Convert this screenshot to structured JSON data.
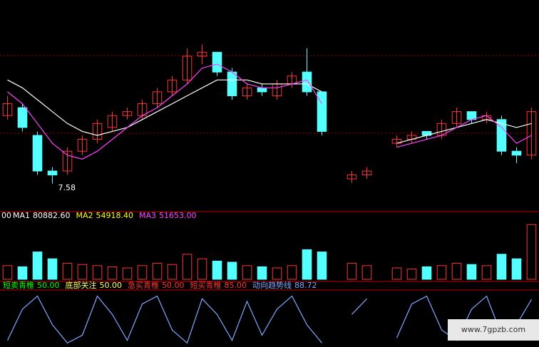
{
  "chart_data": [
    {
      "type": "candlestick",
      "categories": [
        null,
        null,
        null,
        null,
        null,
        null,
        null,
        null,
        null,
        null,
        null,
        null,
        null,
        null,
        null,
        null,
        null,
        null,
        null,
        null,
        null,
        null,
        null,
        null,
        null,
        null,
        null,
        null,
        null,
        null,
        null,
        null,
        null,
        null,
        null,
        null
      ],
      "open": [
        9.3,
        9.5,
        8.8,
        7.9,
        7.9,
        8.4,
        8.7,
        9.0,
        9.3,
        9.3,
        9.6,
        9.9,
        10.2,
        10.8,
        10.9,
        10.4,
        9.8,
        10.0,
        9.8,
        10.1,
        10.4,
        9.9,
        null,
        7.7,
        7.8,
        null,
        8.6,
        8.7,
        8.9,
        8.8,
        9.1,
        9.4,
        9.2,
        9.2,
        8.4,
        8.3
      ],
      "high": [
        9.8,
        9.6,
        8.9,
        8.0,
        8.5,
        8.8,
        9.2,
        9.4,
        9.5,
        9.7,
        10.0,
        10.3,
        11.0,
        11.1,
        10.9,
        10.5,
        10.1,
        10.1,
        10.2,
        10.4,
        11.0,
        9.9,
        null,
        7.9,
        8.0,
        null,
        8.8,
        8.9,
        8.9,
        9.2,
        9.5,
        9.4,
        9.4,
        9.3,
        8.5,
        9.5
      ],
      "low": [
        9.2,
        8.9,
        7.8,
        7.58,
        7.8,
        8.3,
        8.6,
        8.9,
        9.2,
        9.2,
        9.5,
        9.8,
        10.1,
        10.6,
        10.3,
        9.7,
        9.7,
        9.8,
        9.7,
        10.0,
        9.8,
        8.8,
        null,
        7.6,
        7.7,
        null,
        8.5,
        8.6,
        8.7,
        8.7,
        9.0,
        9.1,
        9.1,
        8.3,
        8.1,
        8.2
      ],
      "close": [
        9.6,
        9.0,
        7.9,
        7.8,
        8.4,
        8.7,
        9.1,
        9.3,
        9.4,
        9.6,
        9.9,
        10.2,
        10.8,
        10.9,
        10.4,
        9.8,
        10.0,
        9.9,
        10.1,
        10.3,
        9.9,
        8.9,
        null,
        7.8,
        7.9,
        null,
        8.7,
        8.8,
        8.8,
        9.1,
        9.4,
        9.2,
        9.3,
        8.4,
        8.3,
        9.4
      ],
      "series": [
        {
          "color": "#ffffff",
          "values": [
            10.2,
            10.0,
            9.7,
            9.4,
            9.1,
            8.9,
            8.8,
            8.9,
            9.0,
            9.2,
            9.4,
            9.6,
            9.8,
            10.0,
            10.2,
            10.2,
            10.2,
            10.1,
            10.1,
            10.1,
            10.1,
            9.9,
            null,
            null,
            null,
            null,
            8.6,
            8.7,
            8.8,
            8.9,
            9.0,
            9.1,
            9.2,
            9.1,
            9.0,
            9.1
          ]
        },
        {
          "color": "#ff44ff",
          "values": [
            9.9,
            9.6,
            9.1,
            8.6,
            8.3,
            8.2,
            8.4,
            8.7,
            9.0,
            9.3,
            9.5,
            9.8,
            10.1,
            10.5,
            10.6,
            10.4,
            10.1,
            10.0,
            10.0,
            10.1,
            10.2,
            9.6,
            null,
            null,
            null,
            null,
            8.5,
            8.6,
            8.7,
            8.8,
            9.0,
            9.2,
            9.3,
            9.0,
            8.6,
            8.8
          ]
        }
      ],
      "ylim": [
        7,
        11.5
      ],
      "annotation": "7.58"
    },
    {
      "type": "bar",
      "prefix": "00",
      "legend": [
        {
          "name": "MA1",
          "value": 80882.6,
          "value_label": "80882.60",
          "color": "#ffffff"
        },
        {
          "name": "MA2",
          "value": 54918.4,
          "value_label": "54918.40",
          "color": "#ffff00"
        },
        {
          "name": "MA3",
          "value": 51653,
          "value_label": "51653.00",
          "color": "#ff44ff"
        }
      ],
      "values": [
        60000,
        55000,
        120000,
        90000,
        70000,
        65000,
        60000,
        55000,
        50000,
        60000,
        70000,
        65000,
        110000,
        90000,
        80000,
        75000,
        60000,
        55000,
        50000,
        60000,
        130000,
        120000,
        null,
        70000,
        60000,
        null,
        50000,
        45000,
        55000,
        60000,
        70000,
        65000,
        60000,
        110000,
        90000,
        240000
      ],
      "ylim": [
        0,
        250000
      ]
    },
    {
      "type": "line",
      "legend": [
        {
          "name": "短卖青椎",
          "value": 50,
          "value_label": "50.00",
          "color": "#00ff00"
        },
        {
          "name": "底部关注",
          "value": 50,
          "value_label": "50.00",
          "color": "#ffff66"
        },
        {
          "name": "急买青椎",
          "value": 50,
          "value_label": "50.00",
          "color": "#ff3232"
        },
        {
          "name": "短买青椎",
          "value": 85,
          "value_label": "85.00",
          "color": "#ff3232"
        },
        {
          "name": "动向趋势线",
          "value": 88.72,
          "value_label": "88.72",
          "color": "#7fa8ff"
        }
      ],
      "series": [
        {
          "color": "#7fa8ff",
          "values": [
            10,
            70,
            95,
            40,
            5,
            20,
            95,
            60,
            10,
            80,
            95,
            30,
            5,
            90,
            60,
            10,
            85,
            20,
            70,
            95,
            40,
            5,
            null,
            60,
            90,
            null,
            15,
            80,
            95,
            30,
            10,
            70,
            95,
            20,
            40,
            88.72
          ]
        }
      ],
      "ylim": [
        0,
        100
      ]
    }
  ],
  "watermark": "www.7gpzb.com"
}
